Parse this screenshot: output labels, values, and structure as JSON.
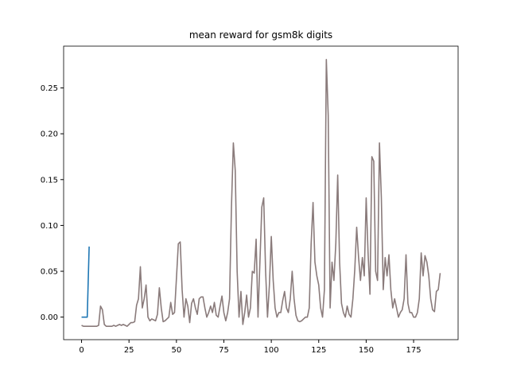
{
  "chart_data": {
    "type": "line",
    "title": "mean reward for gsm8k digits",
    "xlim": [
      -9.45,
      198.45
    ],
    "xticks": [
      0,
      25,
      50,
      75,
      100,
      125,
      150,
      175
    ],
    "ylim": [
      -0.0246,
      0.2956
    ],
    "yticks": [
      {
        "value": 0,
        "label": "0.00"
      },
      0.05,
      {
        "value": 0.1,
        "label": "0.10"
      },
      0.15,
      {
        "value": 0.2,
        "label": "0.20"
      },
      0.25
    ],
    "series": [
      {
        "color": "#8a7b7b",
        "x": [
          0,
          1,
          2,
          3,
          4,
          5,
          6,
          7,
          8,
          9,
          10,
          11,
          12,
          13,
          14,
          15,
          16,
          17,
          18,
          19,
          20,
          21,
          22,
          23,
          24,
          25,
          26,
          27,
          28,
          29,
          30,
          31,
          32,
          33,
          34,
          35,
          36,
          37,
          38,
          39,
          40,
          41,
          42,
          43,
          44,
          45,
          46,
          47,
          48,
          49,
          50,
          51,
          52,
          53,
          54,
          55,
          56,
          57,
          58,
          59,
          60,
          61,
          62,
          63,
          64,
          65,
          66,
          67,
          68,
          69,
          70,
          71,
          72,
          73,
          74,
          75,
          76,
          77,
          78,
          79,
          80,
          81,
          82,
          83,
          84,
          85,
          86,
          87,
          88,
          89,
          90,
          91,
          92,
          93,
          94,
          95,
          96,
          97,
          98,
          99,
          100,
          101,
          102,
          103,
          104,
          105,
          106,
          107,
          108,
          109,
          110,
          111,
          112,
          113,
          114,
          115,
          116,
          117,
          118,
          119,
          120,
          121,
          122,
          123,
          124,
          125,
          126,
          127,
          128,
          129,
          130,
          131,
          132,
          133,
          134,
          135,
          136,
          137,
          138,
          139,
          140,
          141,
          142,
          143,
          144,
          145,
          146,
          147,
          148,
          149,
          150,
          151,
          152,
          153,
          154,
          155,
          156,
          157,
          158,
          159,
          160,
          161,
          162,
          163,
          164,
          165,
          166,
          167,
          168,
          169,
          170,
          171,
          172,
          173,
          174,
          175,
          176,
          177,
          178,
          179,
          180,
          181,
          182,
          183,
          184,
          185,
          186,
          187,
          188,
          189
        ],
        "values": [
          -0.009,
          -0.01,
          -0.01,
          -0.01,
          -0.01,
          -0.01,
          -0.01,
          -0.01,
          -0.01,
          -0.009,
          0.012,
          0.008,
          -0.008,
          -0.01,
          -0.01,
          -0.01,
          -0.01,
          -0.009,
          -0.01,
          -0.009,
          -0.008,
          -0.009,
          -0.008,
          -0.009,
          -0.01,
          -0.008,
          -0.006,
          -0.006,
          -0.005,
          0.013,
          0.02,
          0.055,
          0.01,
          0.02,
          0.035,
          0.0,
          -0.004,
          -0.002,
          -0.003,
          -0.004,
          0.003,
          0.032,
          0.01,
          -0.005,
          -0.004,
          -0.002,
          0.0,
          0.016,
          0.003,
          0.005,
          0.042,
          0.08,
          0.082,
          0.03,
          0.0,
          0.02,
          0.012,
          -0.006,
          0.015,
          0.02,
          0.01,
          0.003,
          0.02,
          0.022,
          0.022,
          0.01,
          0.0,
          0.005,
          0.012,
          0.005,
          0.016,
          0.002,
          0.0,
          0.012,
          0.023,
          0.005,
          -0.004,
          0.005,
          0.02,
          0.12,
          0.19,
          0.16,
          0.05,
          0.0,
          0.028,
          -0.008,
          0.005,
          0.024,
          0.0,
          0.01,
          0.05,
          0.048,
          0.085,
          0.0,
          0.06,
          0.12,
          0.13,
          0.05,
          0.0,
          0.035,
          0.088,
          0.04,
          0.01,
          0.0,
          0.005,
          0.005,
          0.018,
          0.028,
          0.01,
          0.005,
          0.02,
          0.05,
          0.02,
          0.002,
          -0.004,
          -0.005,
          -0.004,
          -0.002,
          0.0,
          0.0,
          0.01,
          0.08,
          0.125,
          0.06,
          0.045,
          0.035,
          0.01,
          0.0,
          0.03,
          0.281,
          0.22,
          0.01,
          0.06,
          0.04,
          0.08,
          0.155,
          0.06,
          0.015,
          0.005,
          0.0,
          0.012,
          0.003,
          0.0,
          0.02,
          0.052,
          0.098,
          0.065,
          0.04,
          0.065,
          0.045,
          0.13,
          0.07,
          0.025,
          0.175,
          0.17,
          0.05,
          0.04,
          0.19,
          0.13,
          0.03,
          0.065,
          0.045,
          0.068,
          0.03,
          0.01,
          0.02,
          0.01,
          0.0,
          0.005,
          0.008,
          0.02,
          0.068,
          0.015,
          0.005,
          0.005,
          0.0,
          0.0,
          0.005,
          0.02,
          0.07,
          0.045,
          0.067,
          0.06,
          0.045,
          0.02,
          0.008,
          0.006,
          0.028,
          0.03,
          0.048
        ]
      },
      {
        "color": "#1f77b4",
        "x": [
          0,
          1,
          2,
          3,
          4
        ],
        "values": [
          0,
          0,
          0,
          0,
          0.077
        ]
      }
    ]
  }
}
